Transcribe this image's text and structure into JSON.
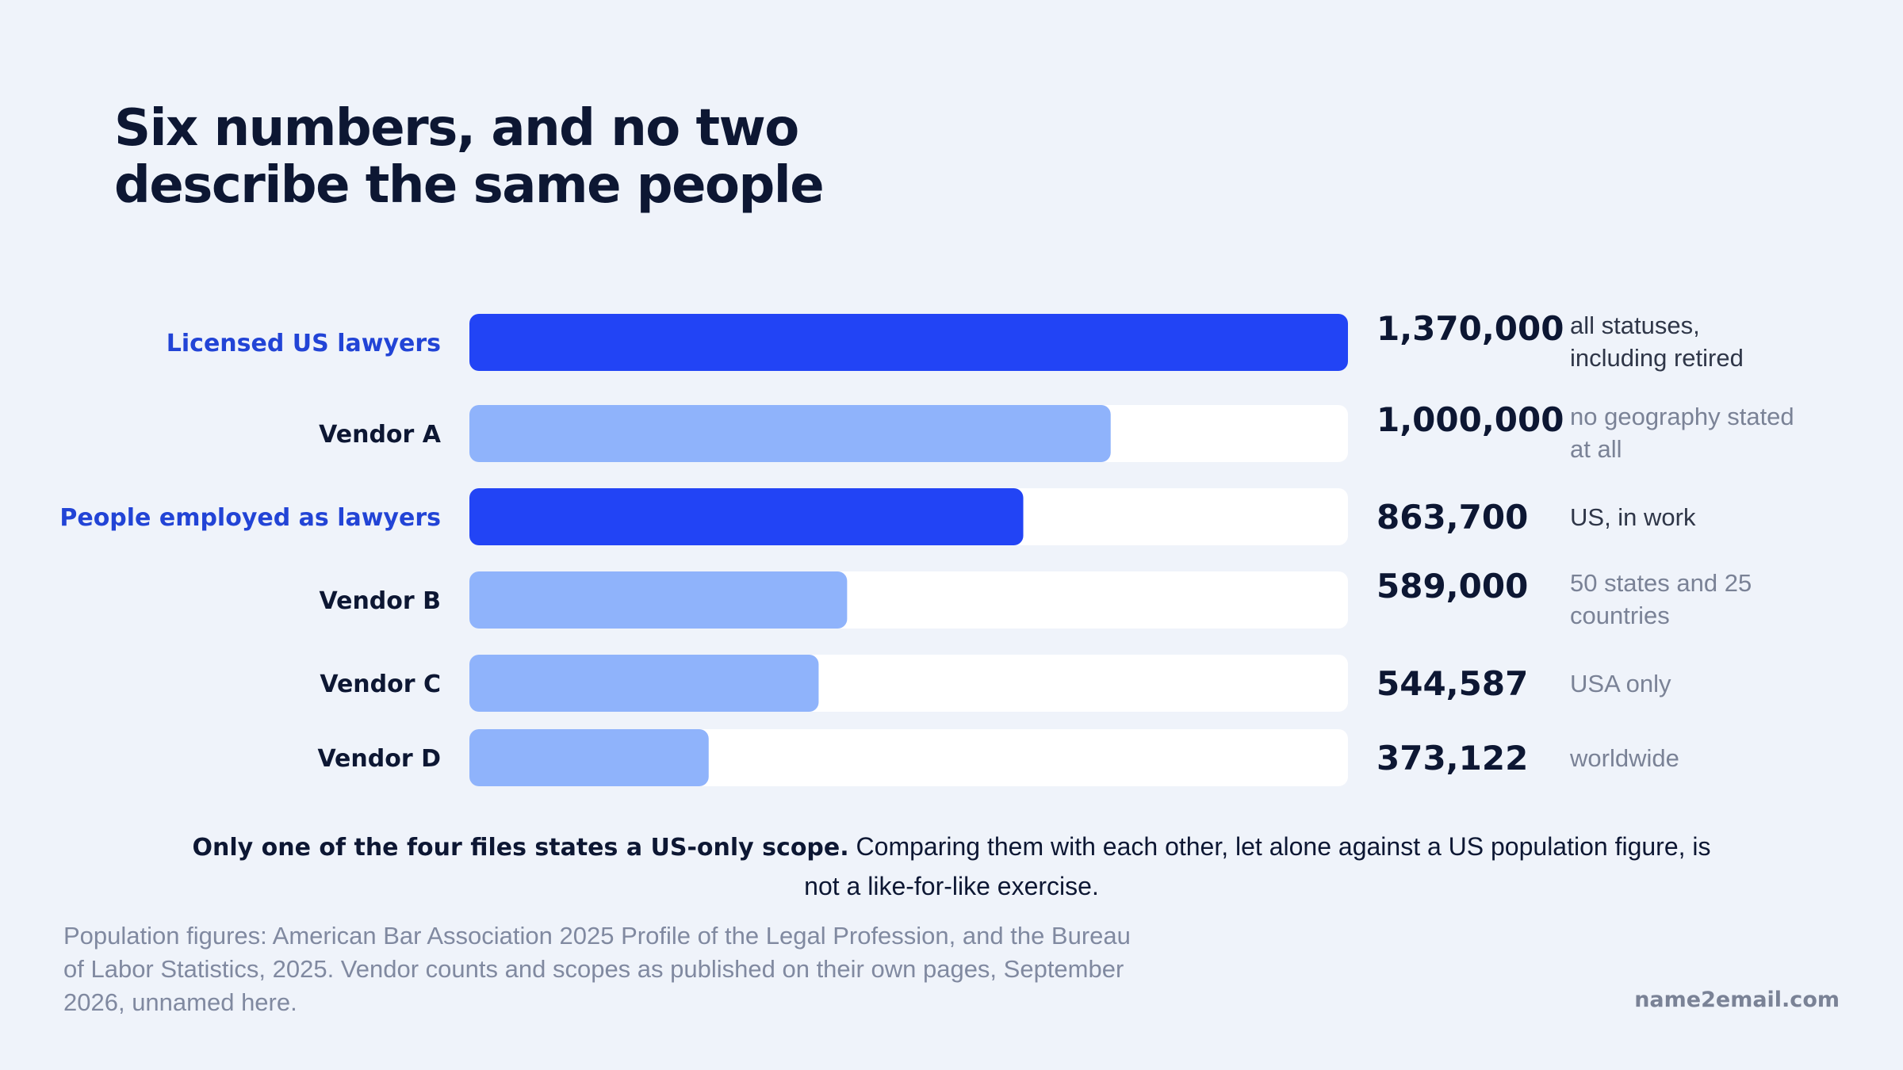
{
  "title": "Six numbers, and no two describe the same people",
  "colors": {
    "background": "#eff3fa",
    "track": "#ffffff",
    "reference": "#2244f5",
    "vendor": "#8fb3fb",
    "reference_label": "#2244d6",
    "vendor_label": "#0d1733",
    "value_text": "#0d1733",
    "note_reference": "#2f3648",
    "note_vendor": "#7a8296"
  },
  "chart_data": {
    "type": "bar",
    "orientation": "horizontal",
    "categories": [
      "Licensed US lawyers",
      "Vendor A",
      "People employed as lawyers",
      "Vendor B",
      "Vendor C",
      "Vendor D"
    ],
    "values": [
      1370000,
      1000000,
      863700,
      589000,
      544587,
      373122
    ],
    "value_labels": [
      "1,370,000",
      "1,000,000",
      "863,700",
      "589,000",
      "544,587",
      "373,122"
    ],
    "notes": [
      "all statuses, including retired",
      "no geography stated at all",
      "US, in work",
      "50 states and 25 countries",
      "USA only",
      "worldwide"
    ],
    "kinds": [
      "reference",
      "vendor",
      "reference",
      "vendor",
      "vendor",
      "vendor"
    ],
    "xlim": [
      0,
      1370000
    ],
    "grid": false
  },
  "caption": {
    "lead": "Only one of the four files states a US-only scope.",
    "rest": "Comparing them with each other, let alone against a US population figure, is not a like-for-like exercise."
  },
  "source": "Population figures: American Bar Association 2025 Profile of the Legal Profession, and the Bureau of Labor Statistics, 2025. Vendor counts and scopes as published on their own pages, September 2026, unnamed here.",
  "brand": "name2email.com"
}
